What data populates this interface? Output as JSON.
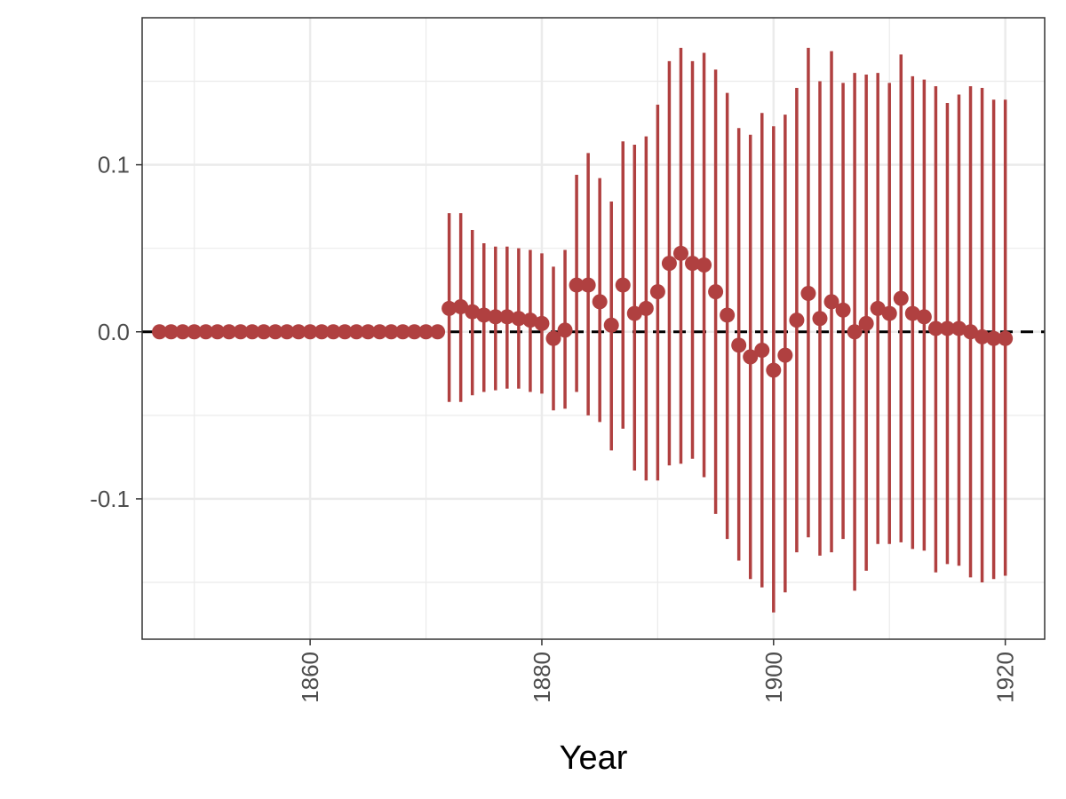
{
  "chart_data": {
    "type": "scatter",
    "title": "",
    "xlabel": "Year",
    "ylabel": "",
    "xlim": [
      1845.5,
      1923.4
    ],
    "ylim": [
      -0.184,
      0.188
    ],
    "x_ticks": [
      1860,
      1880,
      1900,
      1920
    ],
    "x_tick_labels": [
      "1860",
      "1880",
      "1900",
      "1920"
    ],
    "y_ticks": [
      -0.1,
      0.0,
      0.1
    ],
    "y_tick_labels": [
      "-0.1",
      "0.0",
      "0.1"
    ],
    "reference_line_y": 0,
    "grid": true,
    "legend": "none",
    "colors": {
      "point": "#B04040",
      "errorbar": "#B04040",
      "reference": "#000000",
      "grid": "#EBEBEB",
      "panel_border": "#333333"
    },
    "series": [
      {
        "x": [
          1847,
          1848,
          1849,
          1850,
          1851,
          1852,
          1853,
          1854,
          1855,
          1856,
          1857,
          1858,
          1859,
          1860,
          1861,
          1862,
          1863,
          1864,
          1865,
          1866,
          1867,
          1868,
          1869,
          1870,
          1871,
          1872,
          1873,
          1874,
          1875,
          1876,
          1877,
          1878,
          1879,
          1880,
          1881,
          1882,
          1883,
          1884,
          1885,
          1886,
          1887,
          1888,
          1889,
          1890,
          1891,
          1892,
          1893,
          1894,
          1895,
          1896,
          1897,
          1898,
          1899,
          1900,
          1901,
          1902,
          1903,
          1904,
          1905,
          1906,
          1907,
          1908,
          1909,
          1910,
          1911,
          1912,
          1913,
          1914,
          1915,
          1916,
          1917,
          1918,
          1919,
          1920
        ],
        "estimate": [
          0,
          0,
          0,
          0,
          0,
          0,
          0,
          0,
          0,
          0,
          0,
          0,
          0,
          0,
          0,
          0,
          0,
          0,
          0,
          0,
          0,
          0,
          0,
          0,
          0,
          0.014,
          0.015,
          0.012,
          0.01,
          0.009,
          0.009,
          0.008,
          0.007,
          0.005,
          -0.004,
          0.001,
          0.028,
          0.028,
          0.018,
          0.004,
          0.028,
          0.011,
          0.014,
          0.024,
          0.041,
          0.047,
          0.041,
          0.04,
          0.024,
          0.01,
          -0.008,
          -0.015,
          -0.011,
          -0.023,
          -0.014,
          0.007,
          0.023,
          0.008,
          0.018,
          0.013,
          0.0,
          0.005,
          0.014,
          0.011,
          0.02,
          0.011,
          0.009,
          0.002,
          0.002,
          0.002,
          0.0,
          -0.003,
          -0.004,
          -0.004
        ],
        "lower": [
          0,
          0,
          0,
          0,
          0,
          0,
          0,
          0,
          0,
          0,
          0,
          0,
          0,
          0,
          0,
          0,
          0,
          0,
          0,
          0,
          0,
          0,
          0,
          0,
          0,
          -0.042,
          -0.042,
          -0.038,
          -0.036,
          -0.035,
          -0.034,
          -0.034,
          -0.036,
          -0.037,
          -0.047,
          -0.046,
          -0.036,
          -0.05,
          -0.054,
          -0.071,
          -0.058,
          -0.083,
          -0.089,
          -0.089,
          -0.08,
          -0.079,
          -0.076,
          -0.087,
          -0.109,
          -0.124,
          -0.137,
          -0.148,
          -0.153,
          -0.168,
          -0.156,
          -0.132,
          -0.123,
          -0.134,
          -0.132,
          -0.124,
          -0.155,
          -0.143,
          -0.127,
          -0.127,
          -0.126,
          -0.13,
          -0.131,
          -0.144,
          -0.139,
          -0.14,
          -0.147,
          -0.15,
          -0.148,
          -0.146
        ],
        "upper": [
          0,
          0,
          0,
          0,
          0,
          0,
          0,
          0,
          0,
          0,
          0,
          0,
          0,
          0,
          0,
          0,
          0,
          0,
          0,
          0,
          0,
          0,
          0,
          0,
          0,
          0.071,
          0.071,
          0.061,
          0.053,
          0.051,
          0.051,
          0.05,
          0.049,
          0.047,
          0.039,
          0.049,
          0.094,
          0.107,
          0.092,
          0.078,
          0.114,
          0.112,
          0.117,
          0.136,
          0.162,
          0.17,
          0.162,
          0.167,
          0.157,
          0.143,
          0.122,
          0.118,
          0.131,
          0.123,
          0.13,
          0.146,
          0.17,
          0.15,
          0.168,
          0.149,
          0.155,
          0.154,
          0.155,
          0.149,
          0.166,
          0.153,
          0.151,
          0.147,
          0.137,
          0.142,
          0.147,
          0.146,
          0.139,
          0.139
        ]
      }
    ]
  }
}
